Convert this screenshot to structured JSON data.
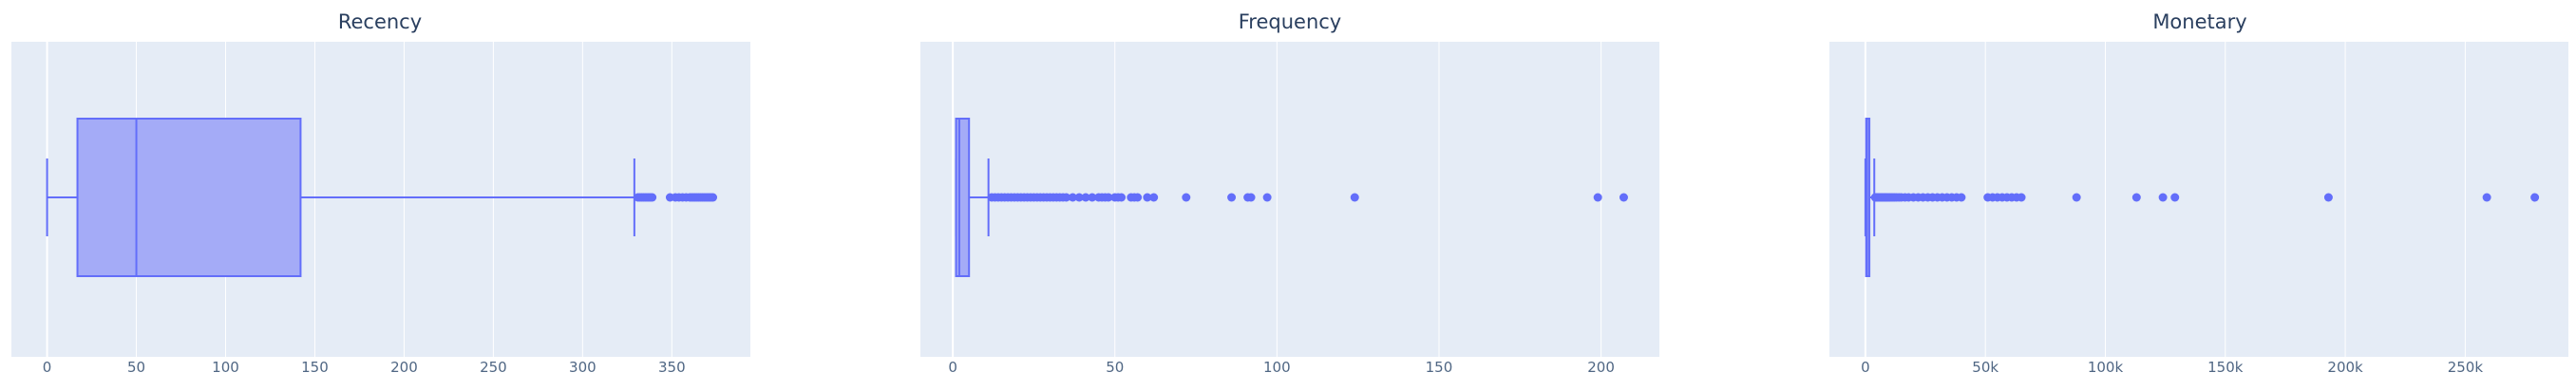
{
  "colors": {
    "plot_bg": "#e5ecf6",
    "grid": "#ffffff",
    "box_line": "#636efa",
    "box_fill": "#a4abf7",
    "text": "#2a3f5f"
  },
  "chart_data": [
    {
      "type": "box",
      "title": "Recency",
      "xlim": [
        -20,
        394
      ],
      "grid": true,
      "ticks": [
        {
          "value": 0,
          "label": "0"
        },
        {
          "value": 50,
          "label": "50"
        },
        {
          "value": 100,
          "label": "100"
        },
        {
          "value": 150,
          "label": "150"
        },
        {
          "value": 200,
          "label": "200"
        },
        {
          "value": 250,
          "label": "250"
        },
        {
          "value": 300,
          "label": "300"
        },
        {
          "value": 350,
          "label": "350"
        }
      ],
      "box": {
        "lower_whisker": 0,
        "q1": 17,
        "median": 50,
        "q3": 142,
        "upper_whisker": 329
      },
      "outliers": [
        331,
        332,
        333,
        334,
        335,
        336,
        337,
        338,
        339,
        349,
        352,
        354,
        356,
        358,
        360,
        361,
        362,
        363,
        364,
        365,
        366,
        367,
        368,
        369,
        370,
        371,
        372,
        373
      ]
    },
    {
      "type": "box",
      "title": "Frequency",
      "xlim": [
        -10,
        218
      ],
      "grid": true,
      "ticks": [
        {
          "value": 0,
          "label": "0"
        },
        {
          "value": 50,
          "label": "50"
        },
        {
          "value": 100,
          "label": "100"
        },
        {
          "value": 150,
          "label": "150"
        },
        {
          "value": 200,
          "label": "200"
        }
      ],
      "box": {
        "lower_whisker": 1,
        "q1": 1,
        "median": 2,
        "q3": 5,
        "upper_whisker": 11
      },
      "outliers": [
        12,
        13,
        14,
        15,
        16,
        17,
        18,
        19,
        20,
        21,
        22,
        23,
        24,
        25,
        26,
        27,
        28,
        29,
        30,
        31,
        32,
        33,
        34,
        35,
        37,
        39,
        41,
        43,
        45,
        46,
        47,
        48,
        50,
        51,
        52,
        55,
        56,
        57,
        60,
        62,
        72,
        86,
        91,
        92,
        97,
        124,
        199,
        207
      ]
    },
    {
      "type": "box",
      "title": "Monetary",
      "xlim": [
        -15000,
        293000
      ],
      "grid": true,
      "ticks": [
        {
          "value": 0,
          "label": "0"
        },
        {
          "value": 50000,
          "label": "50k"
        },
        {
          "value": 100000,
          "label": "100k"
        },
        {
          "value": 150000,
          "label": "150k"
        },
        {
          "value": 200000,
          "label": "200k"
        },
        {
          "value": 250000,
          "label": "250k"
        }
      ],
      "box": {
        "lower_whisker": 0,
        "q1": 300,
        "median": 670,
        "q3": 1660,
        "upper_whisker": 3700
      },
      "outliers": [
        4100,
        4600,
        5100,
        5600,
        6100,
        6600,
        7100,
        7600,
        8100,
        8600,
        9100,
        9600,
        10200,
        10800,
        11500,
        12200,
        13000,
        14000,
        15000,
        16500,
        18000,
        20000,
        22000,
        24000,
        26000,
        28000,
        30000,
        32000,
        34000,
        36000,
        38000,
        40000,
        51000,
        53000,
        55000,
        57000,
        59000,
        61000,
        63000,
        65000,
        88000,
        113000,
        124000,
        129000,
        193000,
        259000,
        279000
      ]
    }
  ]
}
